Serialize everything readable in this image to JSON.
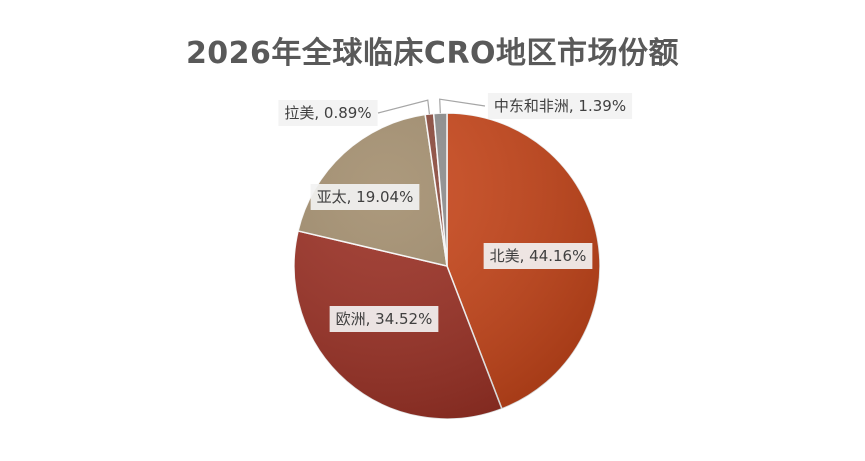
{
  "chart_data": {
    "type": "pie",
    "title": "2026年全球临床CRO地区市场份额",
    "slices": [
      {
        "label": "北美",
        "value": 44.16,
        "display": "北美, 44.16%",
        "color": "#c8461a"
      },
      {
        "label": "欧洲",
        "value": 34.52,
        "display": "欧洲, 34.52%",
        "color": "#9b3024"
      },
      {
        "label": "亚太",
        "value": 19.04,
        "display": "亚太, 19.04%",
        "color": "#a38e6e"
      },
      {
        "label": "拉美",
        "value": 0.89,
        "display": "拉美, 0.89%",
        "color": "#8c4a3c"
      },
      {
        "label": "中东和非洲",
        "value": 1.39,
        "display": "中东和非洲, 1.39%",
        "color": "#8e8e8e"
      }
    ]
  }
}
